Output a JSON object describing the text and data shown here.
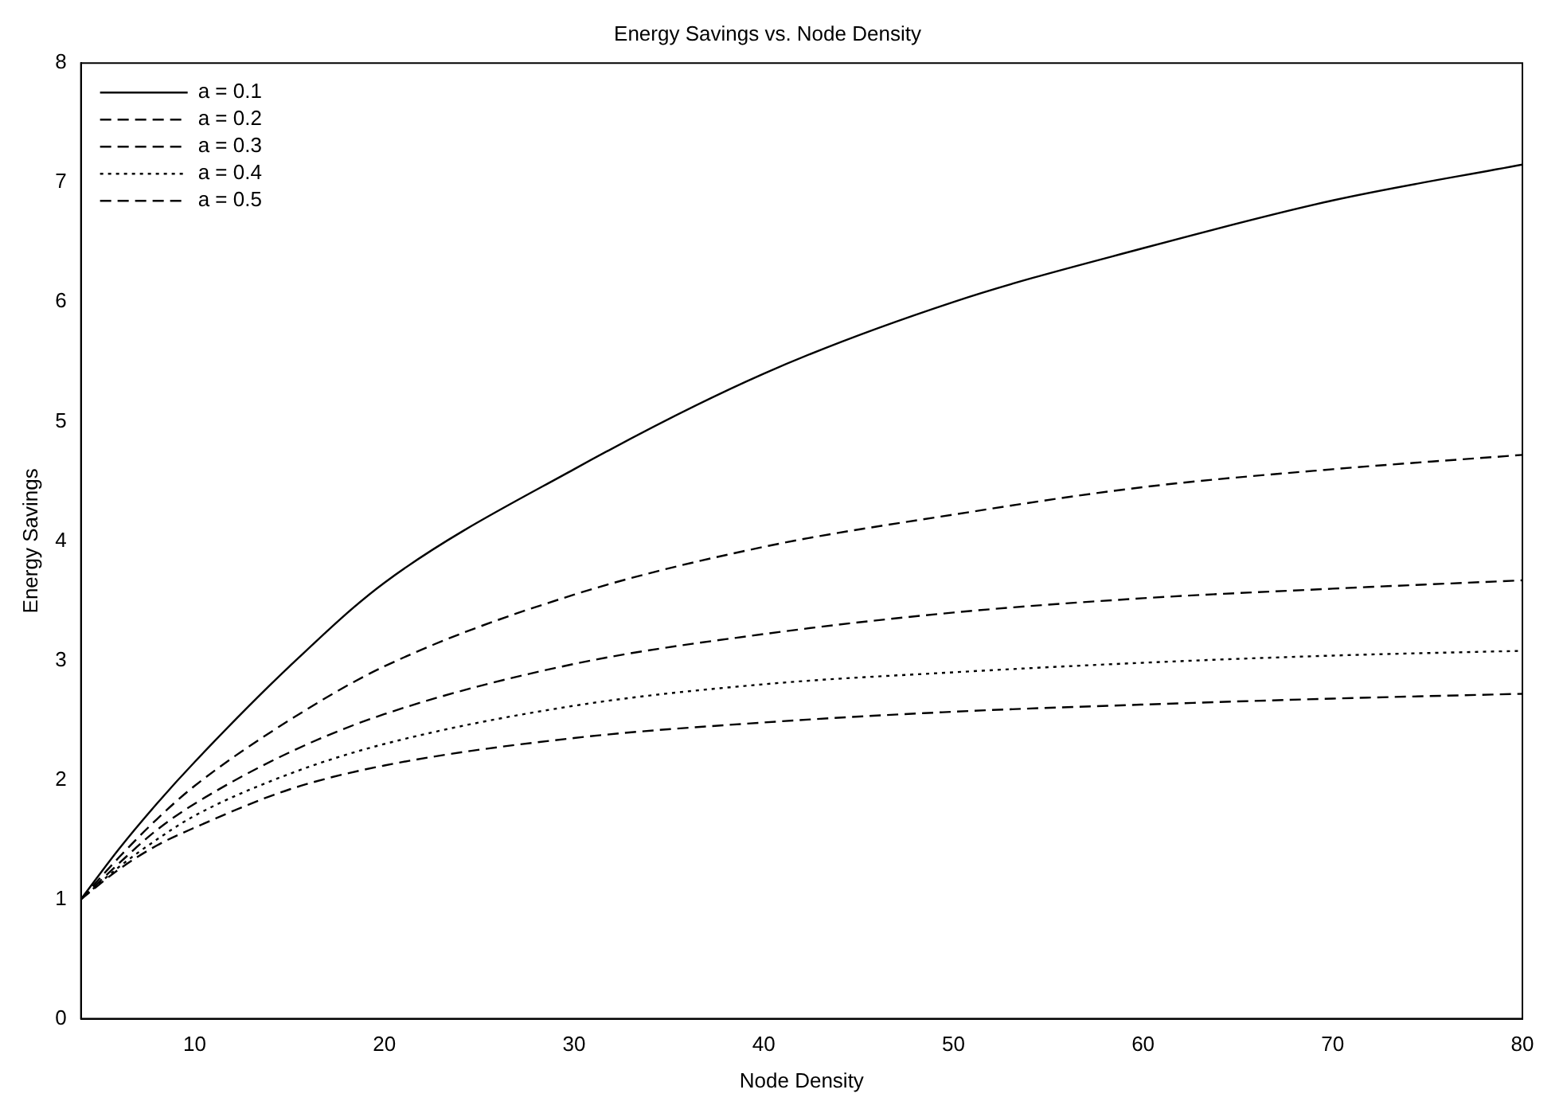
{
  "chart_data": {
    "type": "line",
    "title": "Energy Savings vs. Node Density",
    "xlabel": "Node Density",
    "ylabel": "Energy Savings",
    "xlim": [
      4,
      80
    ],
    "xticks": [
      10,
      20,
      30,
      40,
      50,
      60,
      70,
      80
    ],
    "ylim": [
      0,
      8
    ],
    "yticks": [
      0,
      1,
      2,
      3,
      4,
      5,
      6,
      7,
      8
    ],
    "x": [
      4,
      6,
      8,
      10,
      15,
      20,
      30,
      40,
      50,
      60,
      70,
      80
    ],
    "series": [
      {
        "name": "a = 0.1",
        "color": "#000000",
        "line_style": "solid",
        "values": [
          1,
          1.42,
          1.8,
          2.15,
          2.95,
          3.65,
          4.6,
          5.4,
          6.0,
          6.45,
          6.85,
          7.15
        ]
      },
      {
        "name": "a = 0.2",
        "color": "#000000",
        "line_style": "dashed",
        "values": [
          1,
          1.35,
          1.67,
          1.95,
          2.5,
          2.95,
          3.55,
          3.95,
          4.22,
          4.45,
          4.6,
          4.72
        ]
      },
      {
        "name": "a = 0.3",
        "color": "#000000",
        "line_style": "dashed",
        "values": [
          1,
          1.3,
          1.58,
          1.8,
          2.23,
          2.55,
          2.97,
          3.22,
          3.4,
          3.52,
          3.6,
          3.67
        ]
      },
      {
        "name": "a = 0.4",
        "color": "#000000",
        "line_style": "dotted",
        "values": [
          1,
          1.27,
          1.5,
          1.7,
          2.05,
          2.3,
          2.62,
          2.8,
          2.9,
          2.98,
          3.04,
          3.08
        ]
      },
      {
        "name": "a = 0.5",
        "color": "#000000",
        "line_style": "dashed",
        "values": [
          1,
          1.25,
          1.45,
          1.6,
          1.92,
          2.12,
          2.35,
          2.48,
          2.57,
          2.63,
          2.68,
          2.72
        ]
      }
    ],
    "legend": "top left",
    "grid": false,
    "marker": "none"
  }
}
